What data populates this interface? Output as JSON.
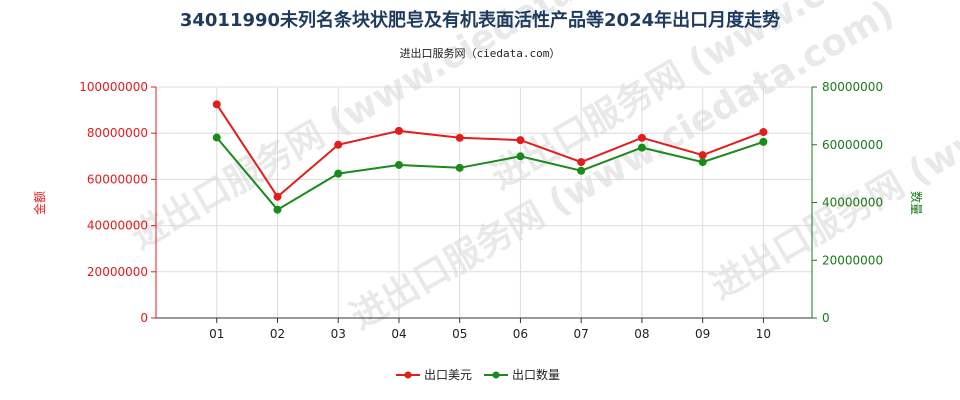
{
  "chart_data": {
    "type": "line",
    "title": "34011990未列名条块状肥皂及有机表面活性产品等2024年出口月度走势",
    "subtitle": "进出口服务网（ciedata.com）",
    "watermark": "进出口服务网 (www.ciedata.com)",
    "categories": [
      "01",
      "02",
      "03",
      "04",
      "05",
      "06",
      "07",
      "08",
      "09",
      "10"
    ],
    "series": [
      {
        "name": "出口美元",
        "axis": "left",
        "color": "#e31c1c",
        "values": [
          92500000,
          52500000,
          75000000,
          81000000,
          78000000,
          77000000,
          67500000,
          78000000,
          70500000,
          80500000
        ]
      },
      {
        "name": "出口数量",
        "axis": "right",
        "color": "#1a8a1a",
        "values": [
          62500000,
          37500000,
          50000000,
          53000000,
          52000000,
          56000000,
          51000000,
          59000000,
          54000000,
          61000000
        ]
      }
    ],
    "y_left": {
      "label": "金额",
      "min": 0,
      "max": 100000000,
      "ticks": [
        "0",
        "20000000",
        "40000000",
        "60000000",
        "80000000",
        "100000000"
      ],
      "tick_values": [
        0,
        20000000,
        40000000,
        60000000,
        80000000,
        100000000
      ],
      "color": "#e31c1c"
    },
    "y_right": {
      "label": "数量",
      "min": 0,
      "max": 80000000,
      "ticks": [
        "0",
        "20000000",
        "40000000",
        "60000000",
        "80000000"
      ],
      "tick_values": [
        0,
        20000000,
        40000000,
        60000000,
        80000000
      ],
      "color": "#1a7a1a"
    },
    "grid": true,
    "legend_position": "bottom-center"
  }
}
